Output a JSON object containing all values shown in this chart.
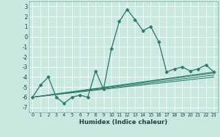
{
  "title": "",
  "xlabel": "Humidex (Indice chaleur)",
  "ylabel": "",
  "xlim": [
    -0.5,
    23.5
  ],
  "ylim": [
    -7.5,
    3.5
  ],
  "yticks": [
    3,
    2,
    1,
    0,
    -1,
    -2,
    -3,
    -4,
    -5,
    -6,
    -7
  ],
  "xticks": [
    0,
    1,
    2,
    3,
    4,
    5,
    6,
    7,
    8,
    9,
    10,
    11,
    12,
    13,
    14,
    15,
    16,
    17,
    18,
    19,
    20,
    21,
    22,
    23
  ],
  "bg_color": "#c8e8e0",
  "grid_color": "#ffffff",
  "line_color": "#2e7b6b",
  "series": [
    {
      "x": [
        0,
        1,
        2,
        3,
        4,
        5,
        6,
        7,
        8,
        9,
        10,
        11,
        12,
        13,
        14,
        15,
        16,
        17,
        18,
        19,
        20,
        21,
        22,
        23
      ],
      "y": [
        -6.0,
        -4.8,
        -4.0,
        -6.0,
        -6.6,
        -6.0,
        -5.8,
        -6.0,
        -3.4,
        -5.2,
        -1.2,
        1.5,
        2.7,
        1.7,
        0.6,
        1.0,
        -0.5,
        -3.5,
        -3.2,
        -3.0,
        -3.4,
        -3.2,
        -2.8,
        -3.5
      ],
      "marker": "D",
      "markersize": 2.5,
      "linewidth": 1.0
    },
    {
      "x": [
        0,
        23
      ],
      "y": [
        -6.0,
        -3.5
      ],
      "marker": null,
      "markersize": 0,
      "linewidth": 0.8
    },
    {
      "x": [
        0,
        23
      ],
      "y": [
        -6.0,
        -3.6
      ],
      "marker": null,
      "markersize": 0,
      "linewidth": 0.8
    },
    {
      "x": [
        0,
        23
      ],
      "y": [
        -6.0,
        -3.8
      ],
      "marker": null,
      "markersize": 0,
      "linewidth": 0.8
    },
    {
      "x": [
        0,
        23
      ],
      "y": [
        -6.0,
        -4.0
      ],
      "marker": null,
      "markersize": 0,
      "linewidth": 0.8
    }
  ]
}
